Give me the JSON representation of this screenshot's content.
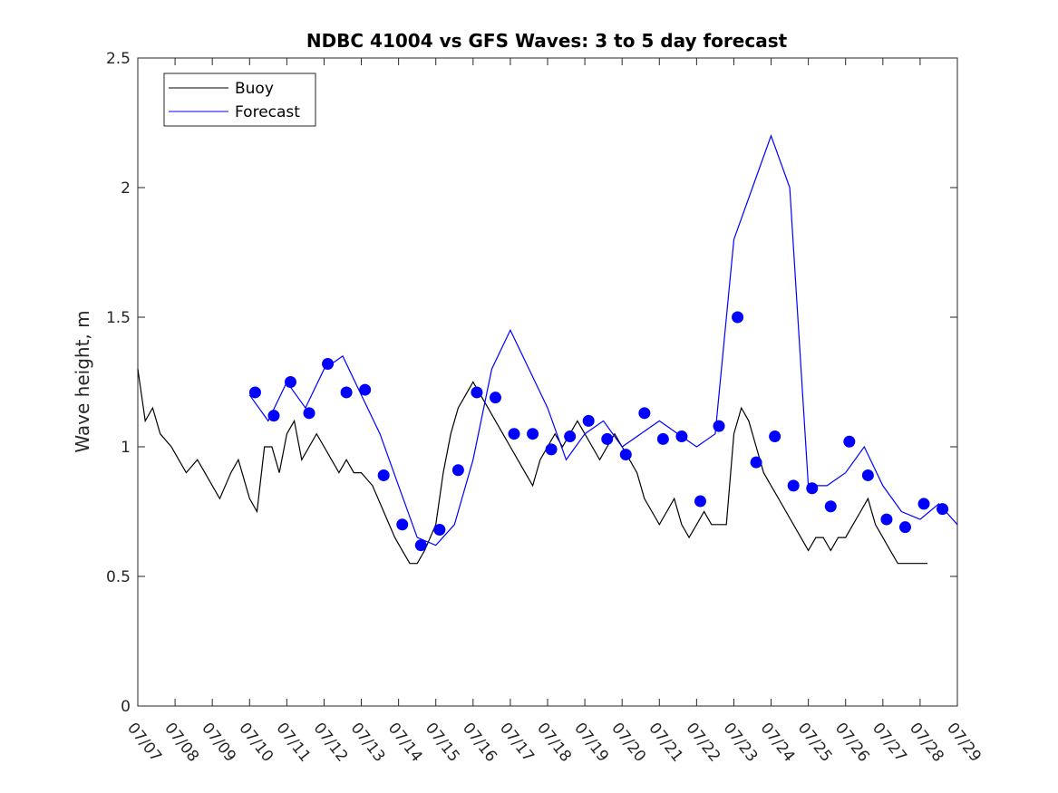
{
  "chart_data": {
    "type": "line",
    "title": "NDBC 41004 vs GFS Waves: 3 to 5 day forecast",
    "xlabel": "",
    "ylabel": "Wave height, m",
    "x_ticks": [
      "07/07",
      "07/08",
      "07/09",
      "07/10",
      "07/11",
      "07/12",
      "07/13",
      "07/14",
      "07/15",
      "07/16",
      "07/17",
      "07/18",
      "07/19",
      "07/20",
      "07/21",
      "07/22",
      "07/23",
      "07/24",
      "07/25",
      "07/26",
      "07/27",
      "07/28",
      "07/29"
    ],
    "y_ticks": [
      "0",
      "0.5",
      "1",
      "1.5",
      "2",
      "2.5"
    ],
    "xlim": [
      0,
      22
    ],
    "ylim": [
      0,
      2.5
    ],
    "grid": false,
    "legend": {
      "position": "top-left",
      "entries": [
        "Buoy",
        "Forecast"
      ]
    },
    "colors": {
      "buoy": "#000000",
      "forecast": "#0000ff",
      "markers": "#0000ff"
    },
    "series": [
      {
        "name": "Buoy",
        "style": "line",
        "color": "#000000",
        "x": [
          0,
          0.1,
          0.2,
          0.4,
          0.6,
          0.9,
          1.1,
          1.3,
          1.6,
          1.8,
          2.0,
          2.2,
          2.5,
          2.7,
          2.9,
          3.0,
          3.2,
          3.4,
          3.6,
          3.8,
          4.0,
          4.2,
          4.4,
          4.6,
          4.8,
          5.0,
          5.2,
          5.4,
          5.6,
          5.8,
          6.0,
          6.3,
          6.6,
          6.9,
          7.1,
          7.3,
          7.5,
          7.7,
          8.0,
          8.2,
          8.4,
          8.6,
          8.8,
          9.0,
          9.2,
          9.4,
          9.6,
          9.8,
          10.0,
          10.2,
          10.4,
          10.6,
          10.8,
          11.0,
          11.2,
          11.4,
          11.6,
          11.8,
          12.0,
          12.2,
          12.4,
          12.6,
          12.8,
          13.0,
          13.2,
          13.4,
          13.6,
          13.8,
          14.0,
          14.2,
          14.4,
          14.6,
          14.8,
          15.0,
          15.2,
          15.4,
          15.6,
          15.8,
          16.0,
          16.2,
          16.4,
          16.6,
          16.8,
          17.0,
          17.2,
          17.4,
          17.6,
          17.8,
          18.0,
          18.2,
          18.4,
          18.6,
          18.8,
          19.0,
          19.2,
          19.4,
          19.6,
          19.8,
          20.0,
          20.2,
          20.4,
          20.6,
          20.8,
          21.0,
          21.2
        ],
        "y": [
          1.3,
          1.2,
          1.1,
          1.15,
          1.05,
          1.0,
          0.95,
          0.9,
          0.95,
          0.9,
          0.85,
          0.8,
          0.9,
          0.95,
          0.85,
          0.8,
          0.75,
          1.0,
          1.0,
          0.9,
          1.05,
          1.1,
          0.95,
          1.0,
          1.05,
          1.0,
          0.95,
          0.9,
          0.95,
          0.9,
          0.9,
          0.85,
          0.75,
          0.65,
          0.6,
          0.55,
          0.55,
          0.6,
          0.7,
          0.9,
          1.05,
          1.15,
          1.2,
          1.25,
          1.2,
          1.15,
          1.1,
          1.05,
          1.0,
          0.95,
          0.9,
          0.85,
          0.95,
          1.0,
          1.05,
          1.0,
          1.05,
          1.1,
          1.05,
          1.0,
          0.95,
          1.0,
          1.05,
          1.0,
          0.95,
          0.9,
          0.8,
          0.75,
          0.7,
          0.75,
          0.8,
          0.7,
          0.65,
          0.7,
          0.75,
          0.7,
          0.7,
          0.7,
          1.05,
          1.15,
          1.1,
          1.0,
          0.9,
          0.85,
          0.8,
          0.75,
          0.7,
          0.65,
          0.6,
          0.65,
          0.65,
          0.6,
          0.65,
          0.65,
          0.7,
          0.75,
          0.8,
          0.7,
          0.65,
          0.6,
          0.55,
          0.55,
          0.55,
          0.55,
          0.55
        ]
      },
      {
        "name": "Forecast",
        "style": "line",
        "color": "#0000ff",
        "x": [
          3.0,
          3.5,
          4.0,
          4.5,
          5.0,
          5.5,
          6.0,
          6.5,
          7.0,
          7.5,
          8.0,
          8.5,
          9.0,
          9.5,
          10.0,
          10.5,
          11.0,
          11.5,
          12.0,
          12.5,
          13.0,
          13.5,
          14.0,
          14.5,
          15.0,
          15.5,
          16.0,
          16.5,
          17.0,
          17.5,
          18.0,
          18.5,
          19.0,
          19.5,
          20.0,
          20.5,
          21.0,
          21.5,
          22.0
        ],
        "y": [
          1.2,
          1.1,
          1.25,
          1.15,
          1.3,
          1.35,
          1.2,
          1.05,
          0.85,
          0.65,
          0.62,
          0.7,
          0.95,
          1.3,
          1.45,
          1.3,
          1.15,
          0.95,
          1.05,
          1.1,
          1.0,
          1.05,
          1.1,
          1.05,
          1.0,
          1.05,
          1.8,
          2.0,
          2.2,
          2.0,
          0.85,
          0.85,
          0.9,
          1.0,
          0.85,
          0.75,
          0.72,
          0.78,
          0.7
        ]
      },
      {
        "name": "",
        "style": "markers",
        "color": "#0000ff",
        "x": [
          3.15,
          3.65,
          4.1,
          4.6,
          5.1,
          5.6,
          6.1,
          6.6,
          7.1,
          7.6,
          8.1,
          8.6,
          9.1,
          9.6,
          10.1,
          10.6,
          11.1,
          11.6,
          12.1,
          12.6,
          13.1,
          13.6,
          14.1,
          14.6,
          15.1,
          15.6,
          16.1,
          16.6,
          17.1,
          17.6,
          18.1,
          18.6,
          19.1,
          19.6,
          20.1,
          20.6,
          21.1,
          21.6
        ],
        "y": [
          1.21,
          1.12,
          1.25,
          1.13,
          1.32,
          1.21,
          1.22,
          0.89,
          0.7,
          0.62,
          0.68,
          0.91,
          1.21,
          1.19,
          1.05,
          1.05,
          0.99,
          1.04,
          1.1,
          1.03,
          0.97,
          1.13,
          1.03,
          1.04,
          0.79,
          1.08,
          1.5,
          0.94,
          1.04,
          0.85,
          0.84,
          0.77,
          1.02,
          0.89,
          0.72,
          0.69,
          0.78,
          0.76
        ]
      }
    ]
  }
}
